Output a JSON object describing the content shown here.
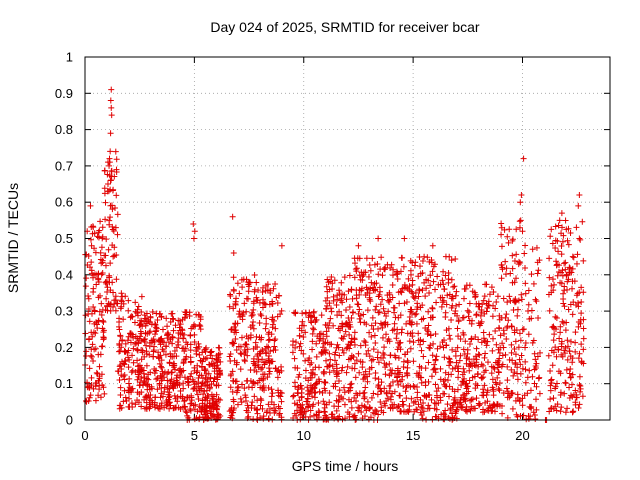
{
  "chart_data": {
    "type": "scatter",
    "title": "Day 024 of 2025, SRMTID for receiver bcar",
    "xlabel": "GPS time / hours",
    "ylabel": "SRMTID / TECUs",
    "xlim": [
      0,
      24
    ],
    "ylim": [
      0,
      1
    ],
    "x_ticks": [
      "0",
      "5",
      "10",
      "15",
      "20"
    ],
    "y_ticks": [
      "0",
      "0.1",
      "0.2",
      "0.3",
      "0.4",
      "0.5",
      "0.6",
      "0.7",
      "0.8",
      "0.9",
      "1"
    ],
    "grid": true,
    "marker": "plus",
    "color": "#e00000",
    "segments": [
      {
        "start": 0.0,
        "end": 0.9,
        "low": 0.05,
        "high": 0.55,
        "count": 130
      },
      {
        "start": 0.9,
        "end": 1.5,
        "low": 0.3,
        "high": 0.74,
        "count": 80
      },
      {
        "start": 1.5,
        "end": 2.5,
        "low": 0.03,
        "high": 0.35,
        "count": 120
      },
      {
        "start": 2.5,
        "end": 4.6,
        "low": 0.03,
        "high": 0.3,
        "count": 300
      },
      {
        "start": 4.6,
        "end": 5.3,
        "low": 0.0,
        "high": 0.3,
        "count": 90
      },
      {
        "start": 5.3,
        "end": 6.2,
        "low": 0.0,
        "high": 0.2,
        "count": 160
      },
      {
        "start": 6.6,
        "end": 7.8,
        "low": 0.0,
        "high": 0.4,
        "count": 150
      },
      {
        "start": 7.8,
        "end": 9.0,
        "low": 0.0,
        "high": 0.38,
        "count": 160
      },
      {
        "start": 9.5,
        "end": 11.0,
        "low": 0.0,
        "high": 0.3,
        "count": 180
      },
      {
        "start": 11.0,
        "end": 12.3,
        "low": 0.0,
        "high": 0.4,
        "count": 170
      },
      {
        "start": 12.3,
        "end": 13.5,
        "low": 0.0,
        "high": 0.45,
        "count": 160
      },
      {
        "start": 13.5,
        "end": 15.2,
        "low": 0.02,
        "high": 0.45,
        "count": 220
      },
      {
        "start": 15.2,
        "end": 17.0,
        "low": 0.0,
        "high": 0.45,
        "count": 230
      },
      {
        "start": 17.0,
        "end": 19.0,
        "low": 0.02,
        "high": 0.38,
        "count": 240
      },
      {
        "start": 19.0,
        "end": 20.2,
        "low": 0.0,
        "high": 0.55,
        "count": 130
      },
      {
        "start": 20.2,
        "end": 20.8,
        "low": 0.0,
        "high": 0.48,
        "count": 50
      },
      {
        "start": 21.2,
        "end": 22.8,
        "low": 0.02,
        "high": 0.55,
        "count": 200
      }
    ],
    "peaks": [
      {
        "x": 1.2,
        "y": 0.91
      },
      {
        "x": 1.18,
        "y": 0.88
      },
      {
        "x": 1.2,
        "y": 0.86
      },
      {
        "x": 1.22,
        "y": 0.84
      },
      {
        "x": 1.17,
        "y": 0.79
      },
      {
        "x": 1.15,
        "y": 0.74
      },
      {
        "x": 1.12,
        "y": 0.72
      },
      {
        "x": 1.1,
        "y": 0.7
      },
      {
        "x": 1.05,
        "y": 0.65
      },
      {
        "x": 0.1,
        "y": 0.52
      },
      {
        "x": 0.25,
        "y": 0.59
      },
      {
        "x": 0.3,
        "y": 0.48
      },
      {
        "x": 1.7,
        "y": 0.34
      },
      {
        "x": 2.6,
        "y": 0.34
      },
      {
        "x": 4.95,
        "y": 0.54
      },
      {
        "x": 5.02,
        "y": 0.52
      },
      {
        "x": 4.98,
        "y": 0.5
      },
      {
        "x": 6.75,
        "y": 0.56
      },
      {
        "x": 6.8,
        "y": 0.46
      },
      {
        "x": 9.0,
        "y": 0.48
      },
      {
        "x": 12.5,
        "y": 0.48
      },
      {
        "x": 13.4,
        "y": 0.5
      },
      {
        "x": 14.6,
        "y": 0.5
      },
      {
        "x": 15.9,
        "y": 0.48
      },
      {
        "x": 16.5,
        "y": 0.45
      },
      {
        "x": 19.9,
        "y": 0.6
      },
      {
        "x": 19.95,
        "y": 0.62
      },
      {
        "x": 20.05,
        "y": 0.72
      },
      {
        "x": 19.92,
        "y": 0.55
      },
      {
        "x": 20.0,
        "y": 0.52
      },
      {
        "x": 21.8,
        "y": 0.57
      },
      {
        "x": 21.7,
        "y": 0.55
      },
      {
        "x": 22.6,
        "y": 0.62
      },
      {
        "x": 22.55,
        "y": 0.59
      },
      {
        "x": 22.6,
        "y": 0.5
      },
      {
        "x": 22.3,
        "y": 0.45
      },
      {
        "x": 21.05,
        "y": 0.0
      },
      {
        "x": 21.1,
        "y": 0.0
      }
    ]
  }
}
